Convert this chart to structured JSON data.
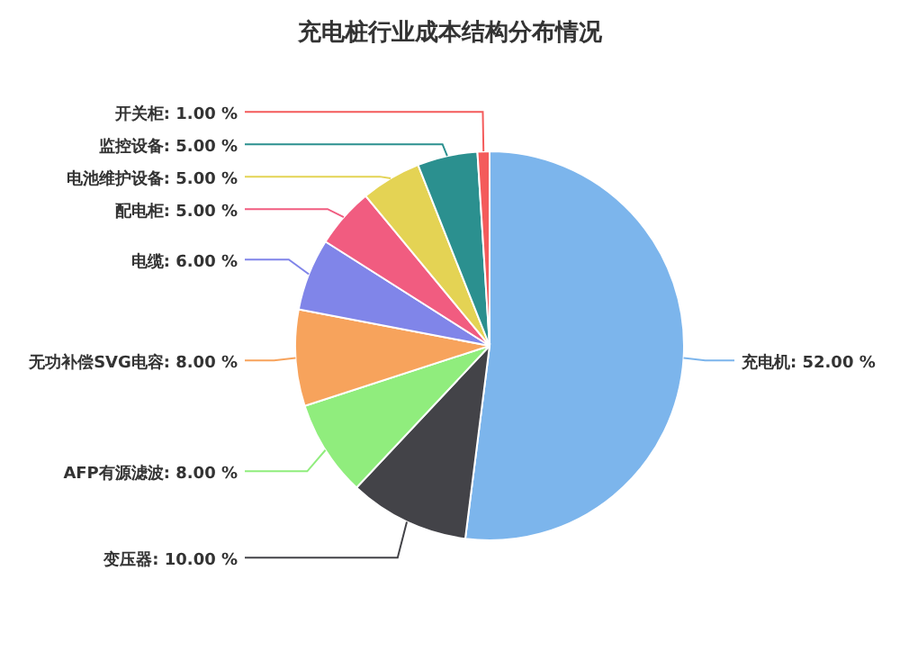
{
  "chart_data": {
    "type": "pie",
    "title": "充电桩行业成本结构分布情况",
    "categories": [
      "充电机",
      "变压器",
      "AFP有源滤波",
      "无功补偿SVG电容",
      "电缆",
      "配电柜",
      "电池维护设备",
      "监控设备",
      "开关柜"
    ],
    "values": [
      52,
      10,
      8,
      8,
      6,
      5,
      5,
      5,
      1
    ],
    "value_labels": [
      "52.00 %",
      "10.00 %",
      "8.00 %",
      "8.00 %",
      "6.00 %",
      "5.00 %",
      "5.00 %",
      "5.00 %",
      "1.00 %"
    ],
    "colors": [
      "#7cb5ec",
      "#434348",
      "#90ed7d",
      "#f7a35c",
      "#8085e9",
      "#f15c80",
      "#e4d354",
      "#2b908f",
      "#f45b5b"
    ]
  }
}
